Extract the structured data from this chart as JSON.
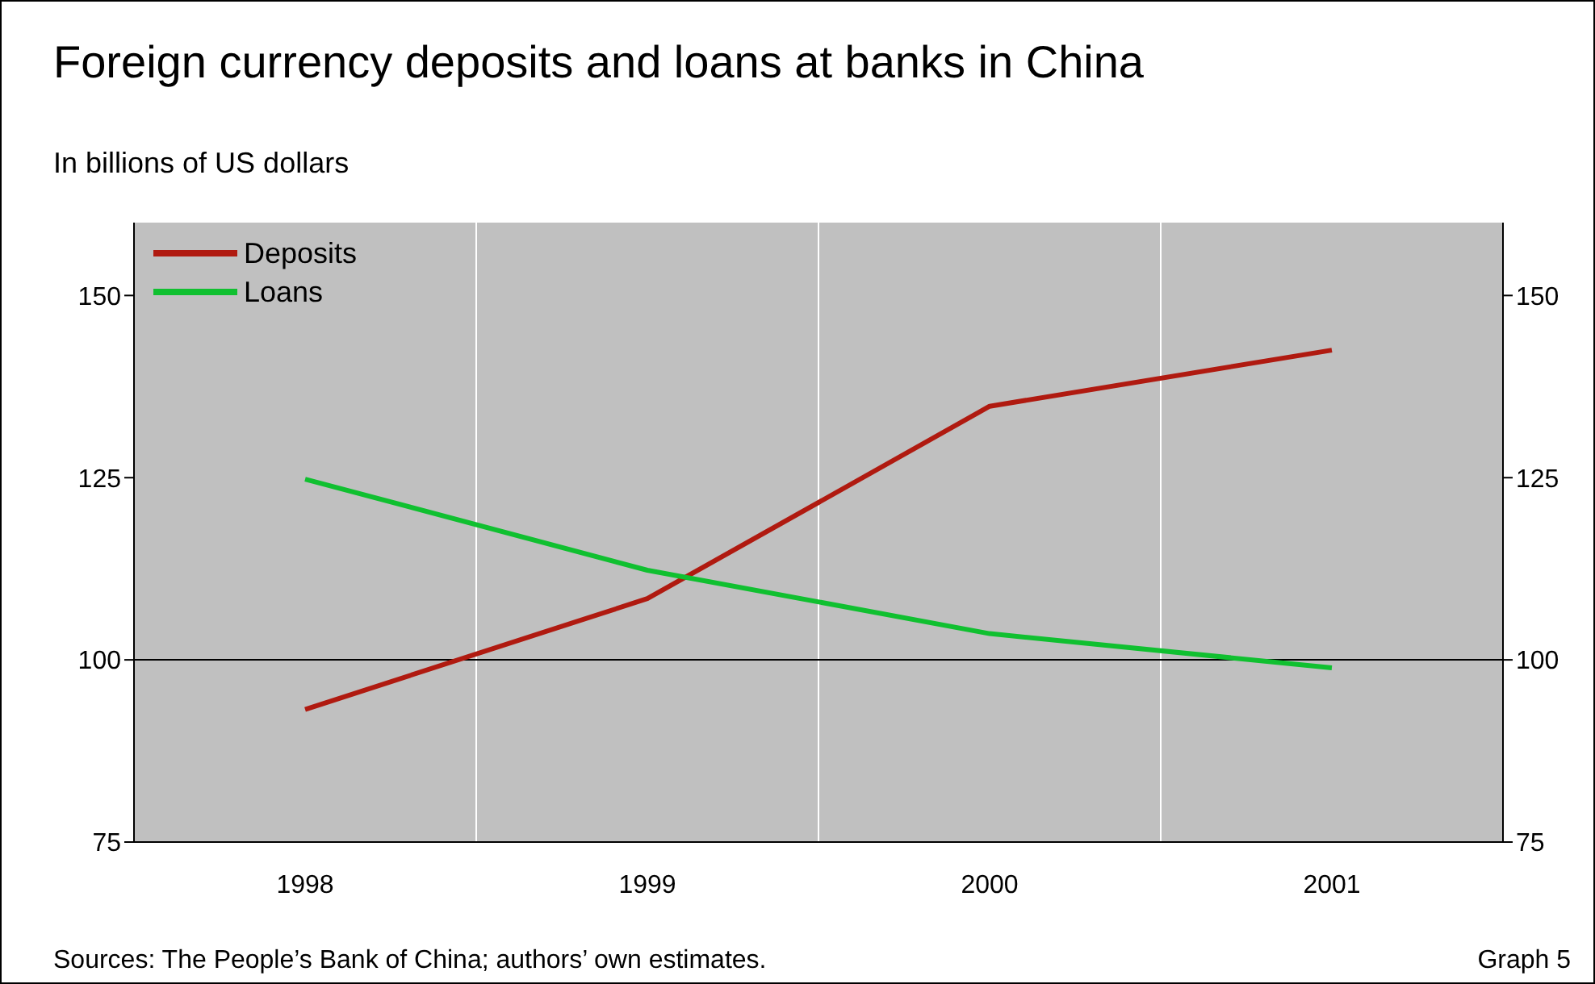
{
  "chart_data": {
    "type": "line",
    "title": "Foreign currency deposits and loans at banks in China",
    "subtitle": "In billions of US dollars",
    "categories": [
      "1998",
      "1999",
      "2000",
      "2001"
    ],
    "series": [
      {
        "name": "Deposits",
        "color": "#b01a10",
        "values": [
          93.2,
          108.4,
          134.8,
          142.5
        ]
      },
      {
        "name": "Loans",
        "color": "#10c030",
        "values": [
          124.8,
          112.3,
          103.6,
          98.9
        ]
      }
    ],
    "ylim": [
      75,
      160
    ],
    "yticks": [
      75,
      100,
      125,
      150
    ],
    "y2lim": [
      75,
      160
    ],
    "y2ticks": [
      75,
      100,
      125,
      150
    ],
    "ref_lines": [
      {
        "axis": "y",
        "value": 100,
        "color": "#000000"
      }
    ],
    "grid": "x",
    "legend": "top left",
    "marker": "none",
    "line_style": "solid",
    "annotations": [
      "Sources: The People’s Bank of China; authors’ own estimates.",
      "Graph 5"
    ]
  }
}
